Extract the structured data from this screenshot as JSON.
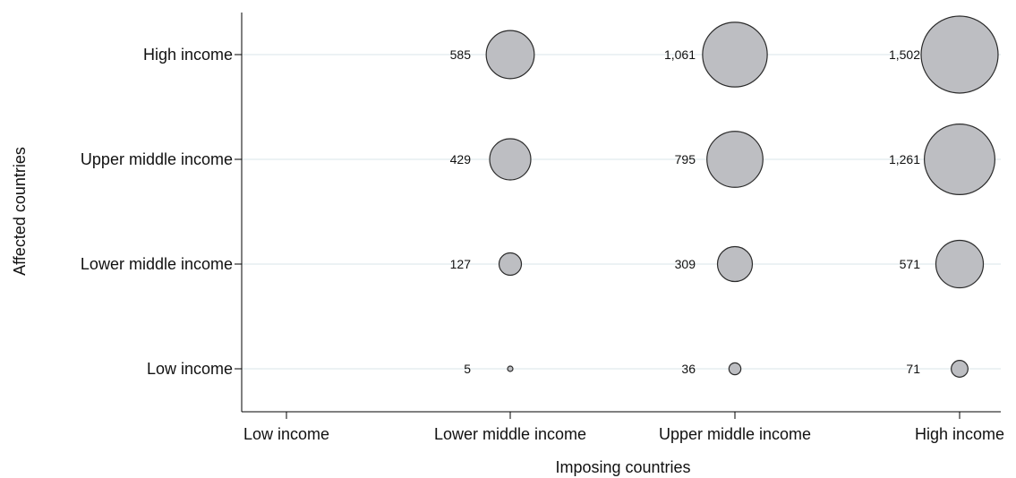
{
  "chart_data": {
    "type": "scatter",
    "subtype": "bubble",
    "xlabel": "Imposing countries",
    "ylabel": "Affected countries",
    "x_categories": [
      "Low income",
      "Lower middle income",
      "Upper middle income",
      "High income"
    ],
    "y_categories": [
      "Low income",
      "Lower middle income",
      "Upper middle income",
      "High income"
    ],
    "grid": "horizontal",
    "bubble_color": "#bdbec2",
    "bubble_stroke": "#2b2b2b",
    "points": [
      {
        "x": "Lower middle income",
        "y": "High income",
        "value": 585,
        "label": "585"
      },
      {
        "x": "Upper middle income",
        "y": "High income",
        "value": 1061,
        "label": "1,061"
      },
      {
        "x": "High income",
        "y": "High income",
        "value": 1502,
        "label": "1,502"
      },
      {
        "x": "Lower middle income",
        "y": "Upper middle income",
        "value": 429,
        "label": "429"
      },
      {
        "x": "Upper middle income",
        "y": "Upper middle income",
        "value": 795,
        "label": "795"
      },
      {
        "x": "High income",
        "y": "Upper middle income",
        "value": 1261,
        "label": "1,261"
      },
      {
        "x": "Lower middle income",
        "y": "Lower middle income",
        "value": 127,
        "label": "127"
      },
      {
        "x": "Upper middle income",
        "y": "Lower middle income",
        "value": 309,
        "label": "309"
      },
      {
        "x": "High income",
        "y": "Lower middle income",
        "value": 571,
        "label": "571"
      },
      {
        "x": "Lower middle income",
        "y": "Low income",
        "value": 5,
        "label": "5"
      },
      {
        "x": "Upper middle income",
        "y": "Low income",
        "value": 36,
        "label": "36"
      },
      {
        "x": "High income",
        "y": "Low income",
        "value": 71,
        "label": "71"
      }
    ]
  }
}
